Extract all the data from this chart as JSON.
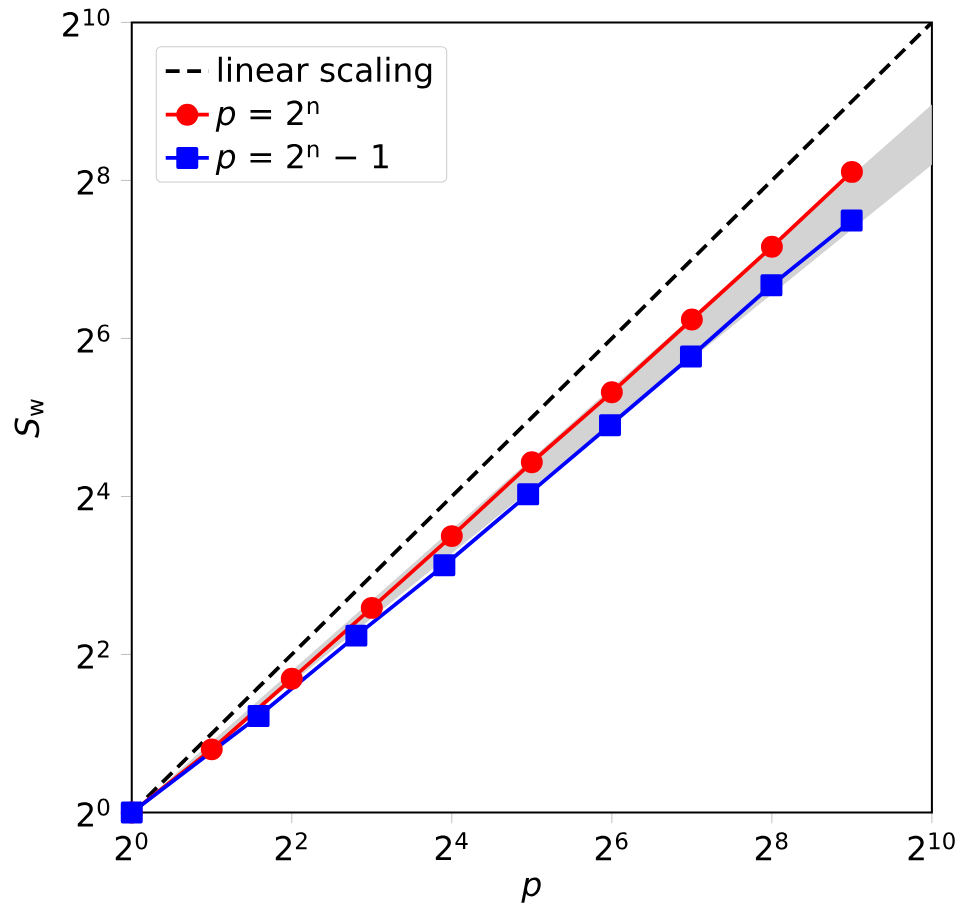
{
  "chart_data": {
    "type": "line",
    "xlabel": "*p*",
    "ylabel": "*S*$_{w}$",
    "log": "xy",
    "legend": "top left",
    "xlim": [
      1,
      1024
    ],
    "ylim": [
      1,
      1024
    ],
    "xticks": [
      {
        "value": 1,
        "label": "2$^{0}$"
      },
      {
        "value": 4,
        "label": "2$^{2}$"
      },
      {
        "value": 16,
        "label": "2$^{4}$"
      },
      {
        "value": 64,
        "label": "2$^{6}$"
      },
      {
        "value": 256,
        "label": "2$^{8}$"
      },
      {
        "value": 1024,
        "label": "2$^{10}$"
      }
    ],
    "yticks": [
      {
        "value": 1,
        "label": "2$^{0}$"
      },
      {
        "value": 4,
        "label": "2$^{2}$"
      },
      {
        "value": 16,
        "label": "2$^{4}$"
      },
      {
        "value": 64,
        "label": "2$^{6}$"
      },
      {
        "value": 256,
        "label": "2$^{8}$"
      },
      {
        "value": 1024,
        "label": "2$^{10}$"
      }
    ],
    "series": [
      {
        "type": "area",
        "color": "#d3d3d3",
        "x": [
          1,
          1024
        ],
        "values": [
          null,
          null
        ],
        "lower": [
          1,
          294
        ],
        "upper": [
          1,
          498
        ]
      },
      {
        "name": "linear scaling",
        "color": "#000000",
        "line_style": "dashed",
        "marker": "none",
        "x": [
          1,
          1024
        ],
        "values": [
          1,
          1024
        ]
      },
      {
        "name": "*p* = 2$^{n}$",
        "color": "#ff0000",
        "line_style": "solid",
        "marker": "circle",
        "x": [
          1,
          2,
          4,
          8,
          16,
          32,
          64,
          128,
          256,
          512
        ],
        "values": [
          1,
          1.74,
          3.23,
          6.02,
          11.3,
          21.6,
          39.9,
          75.6,
          143,
          276
        ]
      },
      {
        "name": "*p* = 2$^{n}$ − 1",
        "color": "#0000ff",
        "line_style": "solid",
        "marker": "square",
        "x": [
          1,
          3,
          7,
          15,
          31,
          63,
          127,
          255,
          511
        ],
        "values": [
          1,
          2.33,
          4.72,
          8.75,
          16.3,
          29.9,
          54.6,
          102,
          180
        ]
      }
    ]
  }
}
